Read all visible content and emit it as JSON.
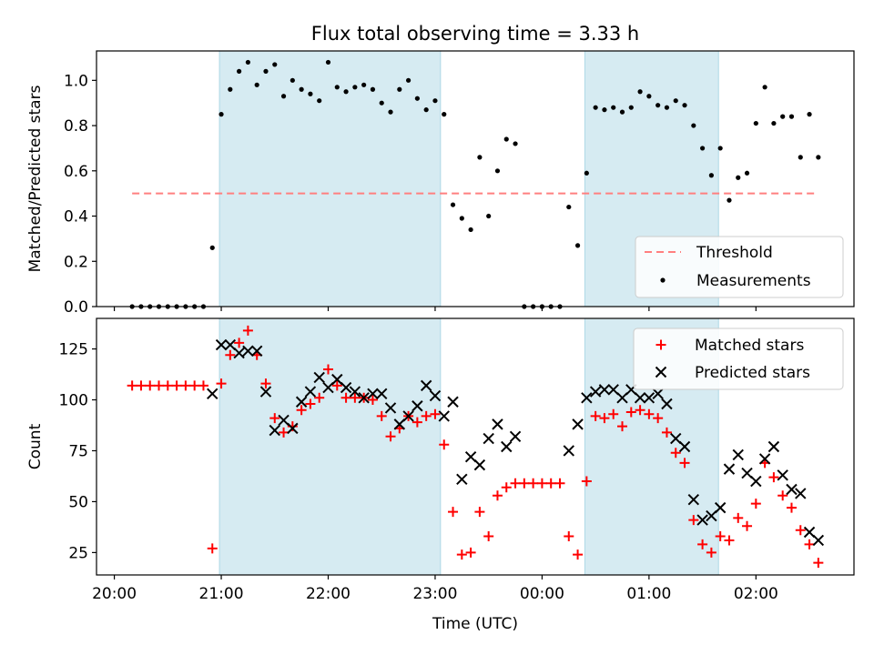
{
  "title": "Flux total observing time = 3.33 h",
  "colors": {
    "band": "#add8e6",
    "threshold": "#ff7f7f",
    "matched": "#ff0000",
    "predicted": "#000000",
    "measurement": "#000000"
  },
  "chart_data": [
    {
      "type": "scatter",
      "ylabel": "Matched/Predicted stars",
      "xlabel": "",
      "xlim": [
        "19:50",
        "02:55"
      ],
      "ylim": [
        0,
        1.13
      ],
      "x_ticks": [
        "20:00",
        "21:00",
        "22:00",
        "23:00",
        "00:00",
        "01:00",
        "02:00"
      ],
      "y_ticks": [
        0.0,
        0.2,
        0.4,
        0.6,
        0.8,
        1.0
      ],
      "y_tick_labels": [
        "0.0",
        "0.2",
        "0.4",
        "0.6",
        "0.8",
        "1.0"
      ],
      "shaded_intervals": [
        [
          "20:59",
          "23:03"
        ],
        [
          "00:24",
          "01:39"
        ]
      ],
      "legend": {
        "position": "lower-right",
        "entries": [
          "Threshold",
          "Measurements"
        ]
      },
      "threshold": {
        "name": "Threshold",
        "y": 0.5,
        "x_range": [
          "20:10",
          "02:33"
        ],
        "style": "dashed"
      },
      "measurements": {
        "name": "Measurements",
        "points": [
          [
            "20:10",
            0.0
          ],
          [
            "20:15",
            0.0
          ],
          [
            "20:20",
            0.0
          ],
          [
            "20:25",
            0.0
          ],
          [
            "20:30",
            0.0
          ],
          [
            "20:35",
            0.0
          ],
          [
            "20:40",
            0.0
          ],
          [
            "20:45",
            0.0
          ],
          [
            "20:50",
            0.0
          ],
          [
            "20:55",
            0.26
          ],
          [
            "21:00",
            0.85
          ],
          [
            "21:05",
            0.96
          ],
          [
            "21:10",
            1.04
          ],
          [
            "21:15",
            1.08
          ],
          [
            "21:20",
            0.98
          ],
          [
            "21:25",
            1.04
          ],
          [
            "21:30",
            1.07
          ],
          [
            "21:35",
            0.93
          ],
          [
            "21:40",
            1.0
          ],
          [
            "21:45",
            0.96
          ],
          [
            "21:50",
            0.94
          ],
          [
            "21:55",
            0.91
          ],
          [
            "22:00",
            1.08
          ],
          [
            "22:05",
            0.97
          ],
          [
            "22:10",
            0.95
          ],
          [
            "22:15",
            0.97
          ],
          [
            "22:20",
            0.98
          ],
          [
            "22:25",
            0.96
          ],
          [
            "22:30",
            0.9
          ],
          [
            "22:35",
            0.86
          ],
          [
            "22:40",
            0.96
          ],
          [
            "22:45",
            1.0
          ],
          [
            "22:50",
            0.92
          ],
          [
            "22:55",
            0.87
          ],
          [
            "23:00",
            0.91
          ],
          [
            "23:05",
            0.85
          ],
          [
            "23:10",
            0.45
          ],
          [
            "23:15",
            0.39
          ],
          [
            "23:20",
            0.34
          ],
          [
            "23:25",
            0.66
          ],
          [
            "23:30",
            0.4
          ],
          [
            "23:35",
            0.6
          ],
          [
            "23:40",
            0.74
          ],
          [
            "23:45",
            0.72
          ],
          [
            "23:50",
            0.0
          ],
          [
            "23:55",
            0.0
          ],
          [
            "00:00",
            0.0
          ],
          [
            "00:05",
            0.0
          ],
          [
            "00:10",
            0.0
          ],
          [
            "00:15",
            0.44
          ],
          [
            "00:20",
            0.27
          ],
          [
            "00:25",
            0.59
          ],
          [
            "00:30",
            0.88
          ],
          [
            "00:35",
            0.87
          ],
          [
            "00:40",
            0.88
          ],
          [
            "00:45",
            0.86
          ],
          [
            "00:50",
            0.88
          ],
          [
            "00:55",
            0.95
          ],
          [
            "01:00",
            0.93
          ],
          [
            "01:05",
            0.89
          ],
          [
            "01:10",
            0.88
          ],
          [
            "01:15",
            0.91
          ],
          [
            "01:20",
            0.89
          ],
          [
            "01:25",
            0.8
          ],
          [
            "01:30",
            0.7
          ],
          [
            "01:35",
            0.58
          ],
          [
            "01:40",
            0.7
          ],
          [
            "01:45",
            0.47
          ],
          [
            "01:50",
            0.57
          ],
          [
            "01:55",
            0.59
          ],
          [
            "02:00",
            0.81
          ],
          [
            "02:05",
            0.97
          ],
          [
            "02:10",
            0.81
          ],
          [
            "02:15",
            0.84
          ],
          [
            "02:20",
            0.84
          ],
          [
            "02:25",
            0.66
          ],
          [
            "02:30",
            0.85
          ],
          [
            "02:35",
            0.66
          ]
        ]
      }
    },
    {
      "type": "scatter",
      "xlabel": "Time (UTC)",
      "ylabel": "Count",
      "xlim": [
        "19:50",
        "02:55"
      ],
      "ylim": [
        14,
        140
      ],
      "x_ticks": [
        "20:00",
        "21:00",
        "22:00",
        "23:00",
        "00:00",
        "01:00",
        "02:00"
      ],
      "y_ticks": [
        25,
        50,
        75,
        100,
        125
      ],
      "y_tick_labels": [
        "25",
        "50",
        "75",
        "100",
        "125"
      ],
      "shaded_intervals": [
        [
          "20:59",
          "23:03"
        ],
        [
          "00:24",
          "01:39"
        ]
      ],
      "legend": {
        "position": "top-right",
        "entries": [
          "Matched stars",
          "Predicted stars"
        ]
      },
      "matched": {
        "name": "Matched stars",
        "points": [
          [
            "20:10",
            107
          ],
          [
            "20:15",
            107
          ],
          [
            "20:20",
            107
          ],
          [
            "20:25",
            107
          ],
          [
            "20:30",
            107
          ],
          [
            "20:35",
            107
          ],
          [
            "20:40",
            107
          ],
          [
            "20:45",
            107
          ],
          [
            "20:50",
            107
          ],
          [
            "20:55",
            27
          ],
          [
            "21:00",
            108
          ],
          [
            "21:05",
            122
          ],
          [
            "21:10",
            128
          ],
          [
            "21:15",
            134
          ],
          [
            "21:20",
            122
          ],
          [
            "21:25",
            108
          ],
          [
            "21:30",
            91
          ],
          [
            "21:35",
            84
          ],
          [
            "21:40",
            87
          ],
          [
            "21:45",
            95
          ],
          [
            "21:50",
            98
          ],
          [
            "21:55",
            101
          ],
          [
            "22:00",
            115
          ],
          [
            "22:05",
            107
          ],
          [
            "22:10",
            101
          ],
          [
            "22:15",
            101
          ],
          [
            "22:20",
            101
          ],
          [
            "22:25",
            100
          ],
          [
            "22:30",
            92
          ],
          [
            "22:35",
            82
          ],
          [
            "22:40",
            86
          ],
          [
            "22:45",
            92
          ],
          [
            "22:50",
            89
          ],
          [
            "22:55",
            92
          ],
          [
            "23:00",
            93
          ],
          [
            "23:05",
            78
          ],
          [
            "23:10",
            45
          ],
          [
            "23:15",
            24
          ],
          [
            "23:20",
            25
          ],
          [
            "23:25",
            45
          ],
          [
            "23:30",
            33
          ],
          [
            "23:35",
            53
          ],
          [
            "23:40",
            57
          ],
          [
            "23:45",
            59
          ],
          [
            "23:50",
            59
          ],
          [
            "23:55",
            59
          ],
          [
            "00:00",
            59
          ],
          [
            "00:05",
            59
          ],
          [
            "00:10",
            59
          ],
          [
            "00:15",
            33
          ],
          [
            "00:20",
            24
          ],
          [
            "00:25",
            60
          ],
          [
            "00:30",
            92
          ],
          [
            "00:35",
            91
          ],
          [
            "00:40",
            93
          ],
          [
            "00:45",
            87
          ],
          [
            "00:50",
            94
          ],
          [
            "00:55",
            95
          ],
          [
            "01:00",
            93
          ],
          [
            "01:05",
            91
          ],
          [
            "01:10",
            84
          ],
          [
            "01:15",
            74
          ],
          [
            "01:20",
            69
          ],
          [
            "01:25",
            41
          ],
          [
            "01:30",
            29
          ],
          [
            "01:35",
            25
          ],
          [
            "01:40",
            33
          ],
          [
            "01:45",
            31
          ],
          [
            "01:50",
            42
          ],
          [
            "01:55",
            38
          ],
          [
            "02:00",
            49
          ],
          [
            "02:05",
            69
          ],
          [
            "02:10",
            62
          ],
          [
            "02:15",
            53
          ],
          [
            "02:20",
            47
          ],
          [
            "02:25",
            36
          ],
          [
            "02:30",
            29
          ],
          [
            "02:35",
            20
          ]
        ]
      },
      "predicted": {
        "name": "Predicted stars",
        "points": [
          [
            "20:55",
            103
          ],
          [
            "21:00",
            127
          ],
          [
            "21:05",
            127
          ],
          [
            "21:10",
            123
          ],
          [
            "21:15",
            124
          ],
          [
            "21:20",
            124
          ],
          [
            "21:25",
            104
          ],
          [
            "21:30",
            85
          ],
          [
            "21:35",
            90
          ],
          [
            "21:40",
            86
          ],
          [
            "21:45",
            99
          ],
          [
            "21:50",
            104
          ],
          [
            "21:55",
            111
          ],
          [
            "22:00",
            106
          ],
          [
            "22:05",
            110
          ],
          [
            "22:10",
            106
          ],
          [
            "22:15",
            104
          ],
          [
            "22:20",
            101
          ],
          [
            "22:25",
            103
          ],
          [
            "22:30",
            103
          ],
          [
            "22:35",
            96
          ],
          [
            "22:40",
            88
          ],
          [
            "22:45",
            92
          ],
          [
            "22:50",
            97
          ],
          [
            "22:55",
            107
          ],
          [
            "23:00",
            102
          ],
          [
            "23:05",
            92
          ],
          [
            "23:10",
            99
          ],
          [
            "23:15",
            61
          ],
          [
            "23:20",
            72
          ],
          [
            "23:25",
            68
          ],
          [
            "23:30",
            81
          ],
          [
            "23:35",
            88
          ],
          [
            "23:40",
            77
          ],
          [
            "23:45",
            82
          ],
          [
            "00:15",
            75
          ],
          [
            "00:20",
            88
          ],
          [
            "00:25",
            101
          ],
          [
            "00:30",
            104
          ],
          [
            "00:35",
            105
          ],
          [
            "00:40",
            105
          ],
          [
            "00:45",
            101
          ],
          [
            "00:50",
            105
          ],
          [
            "00:55",
            101
          ],
          [
            "01:00",
            101
          ],
          [
            "01:05",
            103
          ],
          [
            "01:10",
            98
          ],
          [
            "01:15",
            81
          ],
          [
            "01:20",
            77
          ],
          [
            "01:25",
            51
          ],
          [
            "01:30",
            41
          ],
          [
            "01:35",
            43
          ],
          [
            "01:40",
            47
          ],
          [
            "01:45",
            66
          ],
          [
            "01:50",
            73
          ],
          [
            "01:55",
            64
          ],
          [
            "02:00",
            60
          ],
          [
            "02:05",
            71
          ],
          [
            "02:10",
            77
          ],
          [
            "02:15",
            63
          ],
          [
            "02:20",
            56
          ],
          [
            "02:25",
            54
          ],
          [
            "02:30",
            35
          ],
          [
            "02:35",
            31
          ]
        ]
      }
    }
  ]
}
